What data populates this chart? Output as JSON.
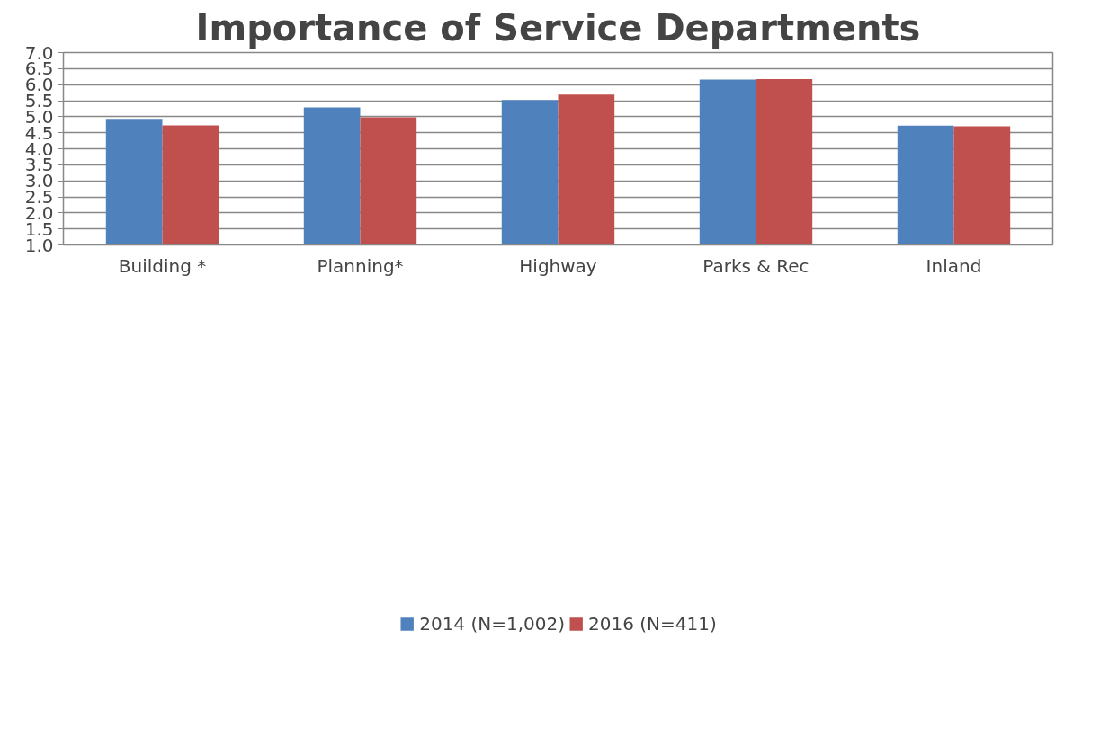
{
  "chart_data": {
    "type": "bar",
    "title": "Importance of Service Departments",
    "categories": [
      "Building *",
      "Planning*",
      "Highway",
      "Parks & Rec",
      "Inland"
    ],
    "series": [
      {
        "name": "2014 (N=1,002)",
        "color": "#4f81bd",
        "values": [
          4.93,
          5.29,
          5.52,
          6.16,
          4.72
        ]
      },
      {
        "name": "2016 (N=411)",
        "color": "#c0504d",
        "values": [
          4.73,
          4.98,
          5.69,
          6.17,
          4.7
        ]
      }
    ],
    "ylim": [
      1.0,
      7.0
    ],
    "yticks": [
      {
        "value": 1.0,
        "label": "1.0"
      },
      {
        "value": 1.5,
        "label": "1.5"
      },
      {
        "value": 2.0,
        "label": "2.0"
      },
      {
        "value": 2.5,
        "label": "2.5"
      },
      {
        "value": 3.0,
        "label": "3.0"
      },
      {
        "value": 3.5,
        "label": "3.5"
      },
      {
        "value": 4.0,
        "label": "4.0"
      },
      {
        "value": 4.5,
        "label": "4.5"
      },
      {
        "value": 5.0,
        "label": "5.0"
      },
      {
        "value": 5.5,
        "label": "5.5"
      },
      {
        "value": 6.0,
        "label": "6.0"
      },
      {
        "value": 6.5,
        "label": "6.5"
      },
      {
        "value": 7.0,
        "label": "7.0"
      }
    ],
    "grid": "y",
    "legend": "bottom"
  }
}
